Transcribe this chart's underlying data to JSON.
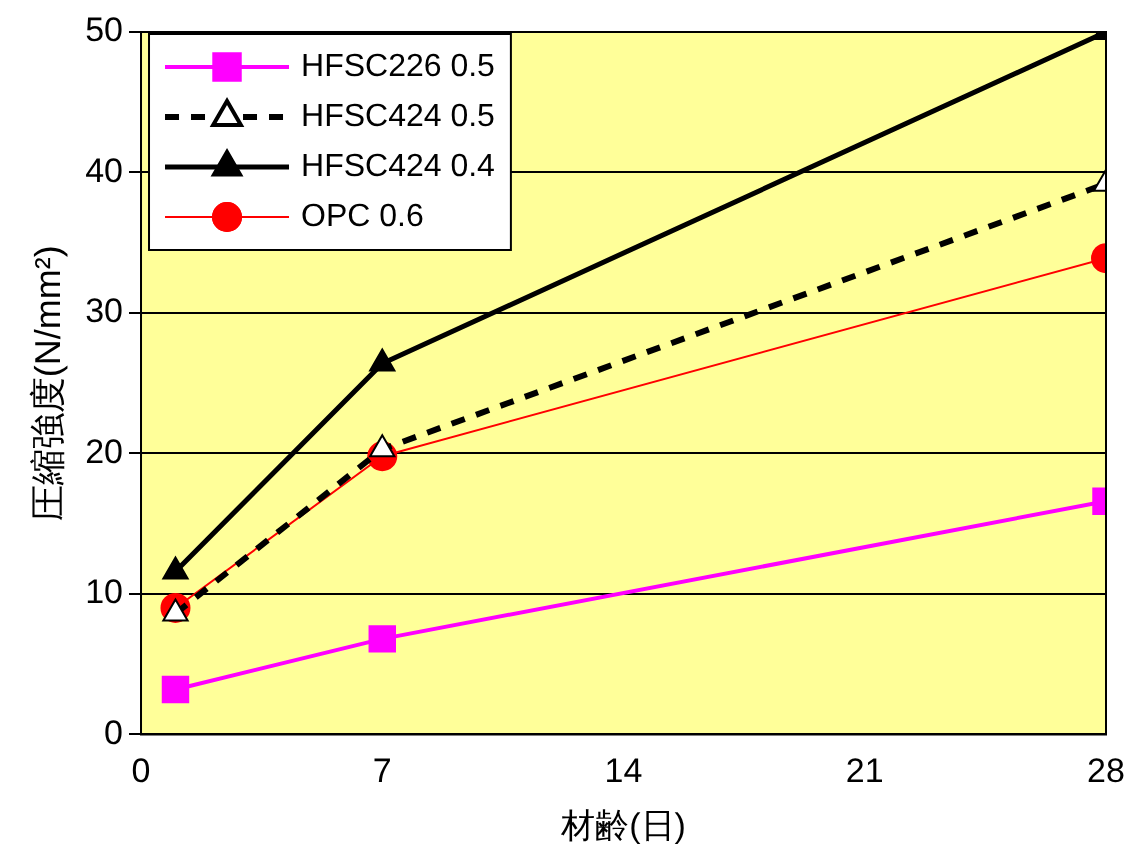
{
  "chart_data": {
    "type": "line",
    "xlabel": "材齢(日)",
    "ylabel": "圧縮強度(N/mm²)",
    "xlim": [
      0,
      28
    ],
    "xticks": [
      0,
      7,
      14,
      21,
      28
    ],
    "ylim": [
      0,
      50
    ],
    "yticks": [
      0,
      10,
      20,
      30,
      40,
      50
    ],
    "grid": "y",
    "legend": "top left",
    "series": [
      {
        "name": "HFSC226 0.5",
        "color": "#ff00ff",
        "marker": "square",
        "line_style": "solid",
        "x": [
          1,
          7,
          28
        ],
        "values": [
          3.2,
          6.8,
          16.6
        ]
      },
      {
        "name": "HFSC424 0.5",
        "color": "#000000",
        "marker": "triangle",
        "line_style": "dashed",
        "x": [
          1,
          7,
          28
        ],
        "values": [
          8.6,
          20.3,
          39.2
        ]
      },
      {
        "name": "HFSC424 0.4",
        "color": "#000000",
        "marker": "triangle",
        "line_style": "solid",
        "x": [
          1,
          7,
          28
        ],
        "values": [
          11.6,
          26.4,
          50
        ]
      },
      {
        "name": "OPC 0.6",
        "color": "#ff0000",
        "marker": "circle",
        "line_style": "solid",
        "x": [
          1,
          7,
          28
        ],
        "values": [
          9.0,
          19.8,
          33.9
        ]
      }
    ]
  }
}
